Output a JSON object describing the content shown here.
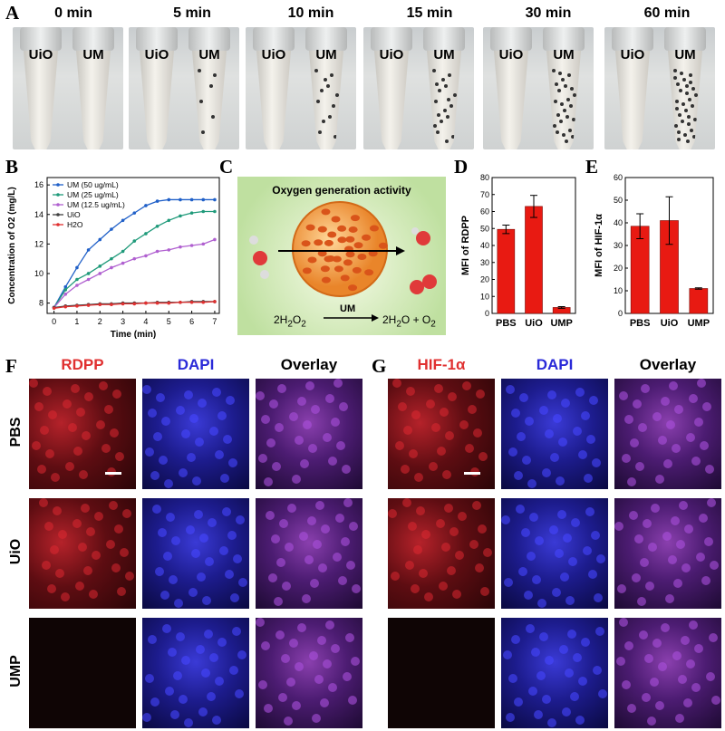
{
  "panels": {
    "A": "A",
    "B": "B",
    "C": "C",
    "D": "D",
    "E": "E",
    "F": "F",
    "G": "G"
  },
  "panel_a": {
    "times": [
      "0 min",
      "5 min",
      "10 min",
      "15 min",
      "30 min",
      "60 min"
    ],
    "tube_labels": [
      "UiO",
      "UM"
    ]
  },
  "panel_c": {
    "title": "Oxygen generation activity",
    "catalyst": "UM",
    "reactant_html": "2H<sub>2</sub>O<sub>2</sub>",
    "product_html": "2H<sub>2</sub>O + O<sub>2</sub>"
  },
  "chart_data": [
    {
      "type": "line",
      "xlabel": "Time (min)",
      "ylabel": "Concentration of O2 (mg/L)",
      "x": [
        0,
        0.5,
        1,
        1.5,
        2,
        2.5,
        3,
        3.5,
        4,
        4.5,
        5,
        5.5,
        6,
        6.5,
        7
      ],
      "xlim": [
        -0.3,
        7.2
      ],
      "ylim": [
        7.3,
        16.5
      ],
      "xticks": [
        "0",
        "1",
        "2",
        "3",
        "4",
        "5",
        "6",
        "7"
      ],
      "yticks": [
        "8",
        "10",
        "12",
        "14",
        "16"
      ],
      "series": [
        {
          "name": "UM (50 ug/mL)",
          "color": "#2060c8",
          "marker": "diamond",
          "values": [
            7.7,
            9.1,
            10.4,
            11.6,
            12.3,
            13.0,
            13.6,
            14.1,
            14.6,
            14.9,
            15.0,
            15.0,
            15.0,
            15.0,
            15.0
          ]
        },
        {
          "name": "UM (25 ug/mL)",
          "color": "#1f9a7a",
          "marker": "triangle",
          "values": [
            7.7,
            8.9,
            9.6,
            10.0,
            10.5,
            11.0,
            11.5,
            12.2,
            12.7,
            13.2,
            13.6,
            13.9,
            14.1,
            14.2,
            14.2
          ]
        },
        {
          "name": "UM (12.5 ug/mL)",
          "color": "#b060d0",
          "marker": "triangle",
          "values": [
            7.7,
            8.6,
            9.2,
            9.6,
            10.0,
            10.4,
            10.7,
            11.0,
            11.2,
            11.5,
            11.6,
            11.8,
            11.9,
            12.0,
            12.3
          ]
        },
        {
          "name": "UiO",
          "color": "#404040",
          "marker": "circle",
          "values": [
            7.7,
            7.8,
            7.85,
            7.9,
            7.95,
            7.95,
            8.0,
            8.0,
            8.0,
            8.05,
            8.05,
            8.05,
            8.1,
            8.1,
            8.1
          ]
        },
        {
          "name": "H2O",
          "color": "#e03030",
          "marker": "circle",
          "values": [
            7.65,
            7.75,
            7.8,
            7.85,
            7.9,
            7.9,
            7.95,
            7.95,
            8.0,
            8.0,
            8.0,
            8.05,
            8.05,
            8.05,
            8.1
          ]
        }
      ]
    },
    {
      "type": "bar",
      "ylabel": "MFI of RDPP",
      "categories": [
        "PBS",
        "UiO",
        "UMP"
      ],
      "values": [
        49.5,
        63,
        3.5
      ],
      "errors": [
        2.5,
        6.5,
        0.5
      ],
      "ylim": [
        0,
        80
      ],
      "yticks": [
        "0",
        "10",
        "20",
        "30",
        "40",
        "50",
        "60",
        "70",
        "80"
      ],
      "color": "#e81a12"
    },
    {
      "type": "bar",
      "ylabel": "MFI of HIF-1α",
      "categories": [
        "PBS",
        "UiO",
        "UMP"
      ],
      "values": [
        38.5,
        41,
        11
      ],
      "errors": [
        5.5,
        10.5,
        0.3
      ],
      "ylim": [
        0,
        60
      ],
      "yticks": [
        "0",
        "10",
        "20",
        "30",
        "40",
        "50",
        "60"
      ],
      "color": "#e81a12"
    }
  ],
  "panel_f": {
    "headers": [
      "RDPP",
      "DAPI",
      "Overlay"
    ],
    "header_colors": [
      "#e03030",
      "#2a2ad8",
      "#000000"
    ]
  },
  "panel_g": {
    "headers": [
      "HIF-1α",
      "DAPI",
      "Overlay"
    ],
    "header_colors": [
      "#e03030",
      "#2a2ad8",
      "#000000"
    ]
  },
  "rows": [
    "PBS",
    "UiO",
    "UMP"
  ]
}
